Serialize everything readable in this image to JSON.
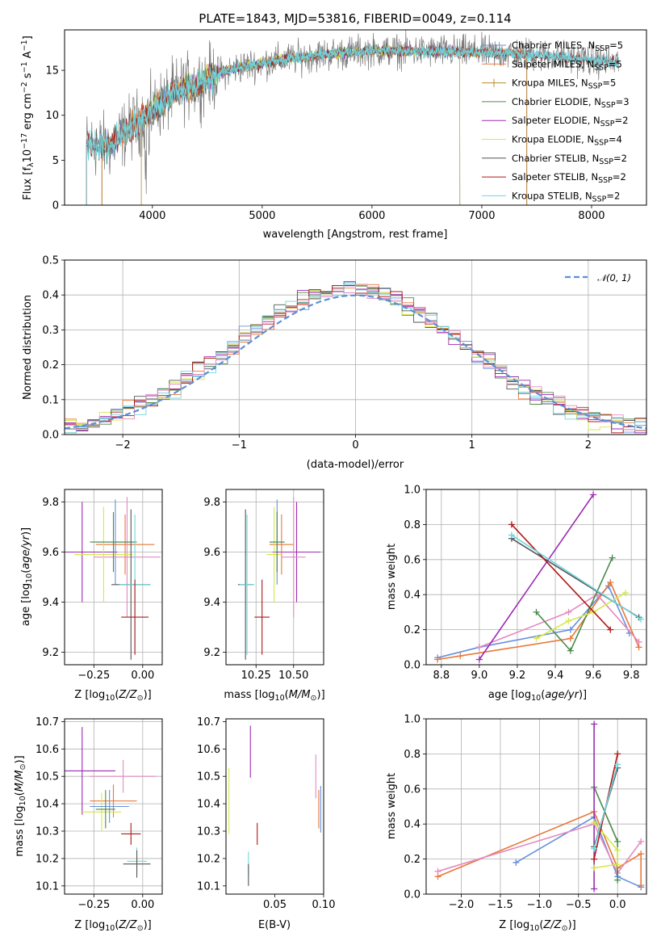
{
  "colors": {
    "chabrier_miles": "#6690dd",
    "salpeter_miles": "#e8783a",
    "kroupa_miles": "#b98a2a",
    "chabrier_elodie": "#4a8a4a",
    "salpeter_elodie": "#9b2bb0",
    "kroupa_elodie": "#d4e84a",
    "chabrier_stelib": "#555555",
    "salpeter_stelib": "#b01818",
    "kroupa_stelib": "#6fd6de",
    "pink": "#e48ac0",
    "gaussian": "#5b8fd6",
    "grid": "#b0b0b0"
  },
  "chart_data": [
    {
      "id": "spectrum",
      "type": "line",
      "title": "PLATE=1843, MJD=53816, FIBERID=0049, z=0.114",
      "xlabel": "wavelength [Angstrom, rest frame]",
      "ylabel": "Flux [f_λ 10^-17 erg cm^-2 s^-1 A^-1]",
      "xlim": [
        3200,
        8500
      ],
      "ylim": [
        0,
        19.5
      ],
      "xticks": [
        4000,
        5000,
        6000,
        7000,
        8000
      ],
      "yticks": [
        0,
        5,
        10,
        15
      ],
      "grid": false,
      "legend_position": "top-right",
      "series": [
        {
          "name": "Chabrier MILES, N_SSP=5"
        },
        {
          "name": "Salpeter MILES, N_SSP=5"
        },
        {
          "name": "Kroupa MILES, N_SSP=5"
        },
        {
          "name": "Chabrier ELODIE, N_SSP=3"
        },
        {
          "name": "Salpeter ELODIE, N_SSP=2"
        },
        {
          "name": "Kroupa ELODIE, N_SSP=4"
        },
        {
          "name": "Chabrier STELIB, N_SSP=2"
        },
        {
          "name": "Salpeter STELIB, N_SSP=2"
        },
        {
          "name": "Kroupa STELIB, N_SSP=2"
        }
      ],
      "continuum": [
        [
          3400,
          6.8
        ],
        [
          3600,
          6.5
        ],
        [
          3800,
          8.6
        ],
        [
          4000,
          10.5
        ],
        [
          4200,
          12.5
        ],
        [
          4400,
          13.5
        ],
        [
          4600,
          14.6
        ],
        [
          4800,
          15.4
        ],
        [
          5000,
          15.8
        ],
        [
          5200,
          16.2
        ],
        [
          5500,
          16.7
        ],
        [
          6000,
          17.2
        ],
        [
          6500,
          17.1
        ],
        [
          7000,
          17.0
        ],
        [
          7400,
          16.8
        ],
        [
          7800,
          16.4
        ],
        [
          8200,
          15.9
        ]
      ],
      "x_range_data": [
        3400,
        8250
      ]
    },
    {
      "id": "residuals",
      "type": "histogram",
      "xlabel": "(data-model)/error",
      "ylabel": "Normed distribution",
      "xlim": [
        -2.5,
        2.5
      ],
      "ylim": [
        0,
        0.5
      ],
      "xticks": [
        -2,
        -1,
        0,
        1,
        2
      ],
      "yticks": [
        0.0,
        0.1,
        0.2,
        0.3,
        0.4,
        0.5
      ],
      "grid": true,
      "legend": "𝒩(0, 1)",
      "legend_position": "top-right",
      "bin_width": 0.1,
      "curve": "normal pdf, mean 0, sigma 1"
    },
    {
      "id": "age_vs_Z",
      "type": "errorbar",
      "xlabel": "Z [log10(Z/Z_sun)]",
      "ylabel": "age  [log10(age/yr)]",
      "xlim": [
        -0.4,
        0.1
      ],
      "ylim": [
        9.15,
        9.85
      ],
      "xticks": [
        -0.25,
        0.0
      ],
      "xticklabels": [
        "−0.25",
        "0.00"
      ],
      "yticks": [
        9.2,
        9.4,
        9.6,
        9.8
      ],
      "grid": true,
      "points": [
        {
          "c": "salpeter_elodie",
          "x": -0.31,
          "y": 9.6,
          "xerr": 0.18,
          "yerr": 0.2
        },
        {
          "c": "chabrier_miles",
          "x": -0.14,
          "y": 9.64,
          "xerr": 0.1,
          "yerr": 0.17
        },
        {
          "c": "salpeter_miles",
          "x": -0.09,
          "y": 9.63,
          "xerr": 0.15,
          "yerr": 0.12
        },
        {
          "c": "pink",
          "x": -0.08,
          "y": 9.58,
          "xerr": 0.17,
          "yerr": 0.24
        },
        {
          "c": "kroupa_elodie",
          "x": -0.2,
          "y": 9.59,
          "xerr": 0.15,
          "yerr": 0.19
        },
        {
          "c": "chabrier_elodie",
          "x": -0.15,
          "y": 9.64,
          "xerr": 0.12,
          "yerr": 0.12
        },
        {
          "c": "chabrier_stelib",
          "x": -0.06,
          "y": 9.47,
          "xerr": 0.1,
          "yerr": 0.3
        },
        {
          "c": "kroupa_stelib",
          "x": -0.04,
          "y": 9.47,
          "xerr": 0.08,
          "yerr": 0.28
        },
        {
          "c": "salpeter_stelib",
          "x": -0.04,
          "y": 9.34,
          "xerr": 0.07,
          "yerr": 0.15
        }
      ]
    },
    {
      "id": "age_vs_mass",
      "type": "errorbar",
      "xlabel": "mass [log10(M/M_sun)]",
      "ylabel": "",
      "xlim": [
        10.05,
        10.7
      ],
      "ylim": [
        9.15,
        9.85
      ],
      "xticks": [
        10.25,
        10.5
      ],
      "xticklabels": [
        "10.25",
        "10.50"
      ],
      "yticks": [
        9.2,
        9.4,
        9.6,
        9.8
      ],
      "grid": true,
      "points": [
        {
          "c": "salpeter_elodie",
          "x": 10.52,
          "y": 9.6,
          "xerr": 0.16,
          "yerr": 0.2
        },
        {
          "c": "chabrier_miles",
          "x": 10.39,
          "y": 9.64,
          "xerr": 0.05,
          "yerr": 0.17
        },
        {
          "c": "salpeter_miles",
          "x": 10.42,
          "y": 9.63,
          "xerr": 0.08,
          "yerr": 0.12
        },
        {
          "c": "pink",
          "x": 10.5,
          "y": 9.58,
          "xerr": 0.08,
          "yerr": 0.24
        },
        {
          "c": "kroupa_elodie",
          "x": 10.37,
          "y": 9.59,
          "xerr": 0.05,
          "yerr": 0.19
        },
        {
          "c": "chabrier_elodie",
          "x": 10.39,
          "y": 9.64,
          "xerr": 0.05,
          "yerr": 0.12
        },
        {
          "c": "chabrier_stelib",
          "x": 10.18,
          "y": 9.47,
          "xerr": 0.05,
          "yerr": 0.3
        },
        {
          "c": "kroupa_stelib",
          "x": 10.19,
          "y": 9.47,
          "xerr": 0.05,
          "yerr": 0.28
        },
        {
          "c": "salpeter_stelib",
          "x": 10.29,
          "y": 9.34,
          "xerr": 0.05,
          "yerr": 0.15
        }
      ]
    },
    {
      "id": "weight_vs_age",
      "type": "line",
      "xlabel": "age  [log10(age/yr)]",
      "ylabel": "mass weight",
      "xlim": [
        8.72,
        9.88
      ],
      "ylim": [
        0,
        1
      ],
      "xticks": [
        8.8,
        9.0,
        9.2,
        9.4,
        9.6,
        9.8
      ],
      "yticks": [
        0.0,
        0.2,
        0.4,
        0.6,
        0.8,
        1.0
      ],
      "grid": true,
      "series": [
        {
          "c": "chabrier_miles",
          "points": [
            [
              8.78,
              0.04
            ],
            [
              9.0,
              0.1
            ],
            [
              9.48,
              0.2
            ],
            [
              9.68,
              0.45
            ],
            [
              9.79,
              0.18
            ]
          ]
        },
        {
          "c": "salpeter_miles",
          "points": [
            [
              8.78,
              0.03
            ],
            [
              8.9,
              0.05
            ],
            [
              9.48,
              0.15
            ],
            [
              9.69,
              0.47
            ],
            [
              9.84,
              0.1
            ]
          ]
        },
        {
          "c": "pink",
          "points": [
            [
              9.0,
              0.1
            ],
            [
              9.47,
              0.3
            ],
            [
              9.62,
              0.4
            ],
            [
              9.84,
              0.13
            ]
          ]
        },
        {
          "c": "chabrier_elodie",
          "points": [
            [
              9.3,
              0.3
            ],
            [
              9.48,
              0.08
            ],
            [
              9.7,
              0.61
            ]
          ]
        },
        {
          "c": "salpeter_elodie",
          "points": [
            [
              9.0,
              0.03
            ],
            [
              9.6,
              0.97
            ]
          ]
        },
        {
          "c": "kroupa_elodie",
          "points": [
            [
              9.3,
              0.15
            ],
            [
              9.47,
              0.25
            ],
            [
              9.6,
              0.3
            ],
            [
              9.77,
              0.41
            ]
          ]
        },
        {
          "c": "chabrier_stelib",
          "points": [
            [
              9.17,
              0.72
            ],
            [
              9.84,
              0.27
            ]
          ]
        },
        {
          "c": "salpeter_stelib",
          "points": [
            [
              9.17,
              0.8
            ],
            [
              9.69,
              0.2
            ]
          ]
        },
        {
          "c": "kroupa_stelib",
          "points": [
            [
              9.17,
              0.74
            ],
            [
              9.85,
              0.26
            ]
          ]
        }
      ]
    },
    {
      "id": "mass_vs_Z",
      "type": "errorbar",
      "xlabel": "Z [log10(Z/Z_sun)]",
      "ylabel": "mass [log10(M/M_sun)]",
      "xlim": [
        -0.4,
        0.1
      ],
      "ylim": [
        10.07,
        10.71
      ],
      "xticks": [
        -0.25,
        0.0
      ],
      "xticklabels": [
        "−0.25",
        "0.00"
      ],
      "yticks": [
        10.1,
        10.2,
        10.3,
        10.4,
        10.5,
        10.6,
        10.7
      ],
      "grid": true,
      "points": [
        {
          "c": "salpeter_elodie",
          "x": -0.31,
          "y": 10.52,
          "xerr": 0.17,
          "yerr": 0.16
        },
        {
          "c": "pink",
          "x": -0.1,
          "y": 10.5,
          "xerr": 0.17,
          "yerr": 0.06
        },
        {
          "c": "salpeter_miles",
          "x": -0.15,
          "y": 10.41,
          "xerr": 0.12,
          "yerr": 0.06
        },
        {
          "c": "kroupa_elodie",
          "x": -0.21,
          "y": 10.37,
          "xerr": 0.1,
          "yerr": 0.07
        },
        {
          "c": "chabrier_miles",
          "x": -0.17,
          "y": 10.39,
          "xerr": 0.1,
          "yerr": 0.06
        },
        {
          "c": "chabrier_elodie",
          "x": -0.19,
          "y": 10.38,
          "xerr": 0.05,
          "yerr": 0.07
        },
        {
          "c": "salpeter_stelib",
          "x": -0.06,
          "y": 10.29,
          "xerr": 0.05,
          "yerr": 0.04
        },
        {
          "c": "kroupa_stelib",
          "x": -0.03,
          "y": 10.19,
          "xerr": 0.05,
          "yerr": 0.05
        },
        {
          "c": "chabrier_stelib",
          "x": -0.03,
          "y": 10.18,
          "xerr": 0.07,
          "yerr": 0.05
        }
      ]
    },
    {
      "id": "mass_vs_EBV",
      "type": "errorbar",
      "xlabel": "E(B-V)",
      "ylabel": "",
      "xlim": [
        0.0,
        0.1
      ],
      "ylim": [
        10.07,
        10.71
      ],
      "xticks": [
        0.05,
        0.1
      ],
      "xticklabels": [
        "0.05",
        "0.10"
      ],
      "yticks": [
        10.1,
        10.2,
        10.3,
        10.4,
        10.5,
        10.6,
        10.7
      ],
      "grid": false,
      "points": [
        {
          "c": "salpeter_elodie",
          "x": 0.025,
          "y": 10.59,
          "xerr": 0,
          "yerr": 0.095
        },
        {
          "c": "pink",
          "x": 0.092,
          "y": 10.5,
          "xerr": 0,
          "yerr": 0.08
        },
        {
          "c": "salpeter_miles",
          "x": 0.095,
          "y": 10.38,
          "xerr": 0,
          "yerr": 0.07
        },
        {
          "c": "chabrier_miles",
          "x": 0.097,
          "y": 10.38,
          "xerr": 0,
          "yerr": 0.085
        },
        {
          "c": "kroupa_elodie",
          "x": 0.003,
          "y": 10.41,
          "xerr": 0,
          "yerr": 0.12
        },
        {
          "c": "salpeter_stelib",
          "x": 0.032,
          "y": 10.29,
          "xerr": 0,
          "yerr": 0.04
        },
        {
          "c": "kroupa_stelib",
          "x": 0.023,
          "y": 10.18,
          "xerr": 0,
          "yerr": 0.045
        },
        {
          "c": "chabrier_stelib",
          "x": 0.023,
          "y": 10.14,
          "xerr": 0,
          "yerr": 0.04
        }
      ]
    },
    {
      "id": "weight_vs_Z",
      "type": "line",
      "xlabel": "Z [log10(Z/Z_sun)]",
      "ylabel": "mass weight",
      "xlim": [
        -2.45,
        0.37
      ],
      "ylim": [
        0,
        1
      ],
      "xticks": [
        -2.0,
        -1.5,
        -1.0,
        -0.5,
        0.0
      ],
      "xticklabels": [
        "−2.0",
        "−1.5",
        "−1.0",
        "−0.5",
        "0.0"
      ],
      "yticks": [
        0.0,
        0.2,
        0.4,
        0.6,
        0.8,
        1.0
      ],
      "grid": true,
      "series": [
        {
          "c": "chabrier_miles",
          "points": [
            [
              -1.3,
              0.18
            ],
            [
              -0.3,
              0.44
            ],
            [
              0.0,
              0.1
            ],
            [
              0.3,
              0.04
            ]
          ]
        },
        {
          "c": "salpeter_miles",
          "points": [
            [
              -2.3,
              0.1
            ],
            [
              -0.3,
              0.47
            ],
            [
              0.0,
              0.15
            ],
            [
              0.3,
              0.23
            ],
            [
              0.3,
              0.05
            ]
          ]
        },
        {
          "c": "pink",
          "points": [
            [
              -2.3,
              0.13
            ],
            [
              -0.3,
              0.4
            ],
            [
              0.0,
              0.12
            ],
            [
              0.3,
              0.3
            ]
          ]
        },
        {
          "c": "chabrier_elodie",
          "points": [
            [
              -0.3,
              0.61
            ],
            [
              0.0,
              0.3
            ],
            [
              0.0,
              0.08
            ]
          ]
        },
        {
          "c": "salpeter_elodie",
          "points": [
            [
              -0.3,
              0.97
            ],
            [
              -0.3,
              0.03
            ]
          ]
        },
        {
          "c": "kroupa_elodie",
          "points": [
            [
              -0.3,
              0.41
            ],
            [
              0.0,
              0.25
            ],
            [
              0.0,
              0.17
            ],
            [
              -0.3,
              0.15
            ]
          ]
        },
        {
          "c": "chabrier_stelib",
          "points": [
            [
              -0.3,
              0.27
            ],
            [
              0.0,
              0.72
            ]
          ]
        },
        {
          "c": "salpeter_stelib",
          "points": [
            [
              -0.3,
              0.2
            ],
            [
              0.0,
              0.8
            ]
          ]
        },
        {
          "c": "kroupa_stelib",
          "points": [
            [
              -0.3,
              0.26
            ],
            [
              0.0,
              0.74
            ]
          ]
        }
      ]
    }
  ]
}
